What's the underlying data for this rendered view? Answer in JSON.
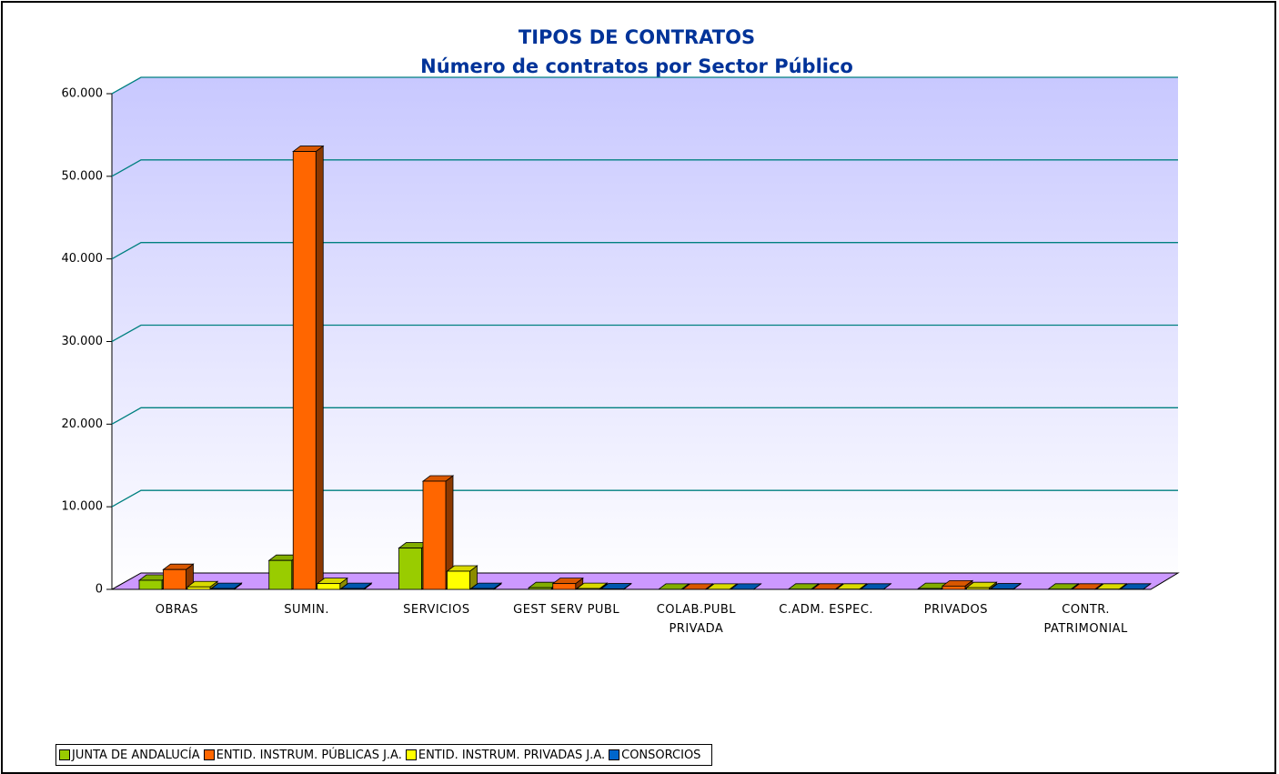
{
  "chart_data": {
    "type": "bar",
    "title": "TIPOS DE CONTRATOS",
    "subtitle": "Número de contratos por Sector Público",
    "categories": [
      "OBRAS",
      "SUMIN.",
      "SERVICIOS",
      "GEST SERV PUBL",
      "COLAB.PUBL PRIVADA",
      "C.ADM. ESPEC.",
      "PRIVADOS",
      "CONTR. PATRIMONIAL"
    ],
    "series": [
      {
        "name": "JUNTA DE ANDALUCÍA",
        "color": "#99cc00",
        "values": [
          1100,
          3500,
          5000,
          200,
          10,
          20,
          100,
          20
        ]
      },
      {
        "name": "ENTID. INSTRUM. PÚBLICAS J.A.",
        "color": "#ff6600",
        "values": [
          2400,
          53000,
          13100,
          700,
          10,
          20,
          400,
          20
        ]
      },
      {
        "name": "ENTID. INSTRUM. PRIVADAS J.A.",
        "color": "#ffff00",
        "values": [
          300,
          700,
          2200,
          100,
          10,
          20,
          200,
          20
        ]
      },
      {
        "name": "CONSORCIOS",
        "color": "#0066cc",
        "values": [
          100,
          100,
          100,
          50,
          10,
          20,
          50,
          20
        ]
      }
    ],
    "ylim": [
      0,
      60000
    ],
    "yticks": [
      0,
      {
        "value": 10000,
        "label": "10.000"
      },
      {
        "value": 20000,
        "label": "20.000"
      },
      {
        "value": 30000,
        "label": "30.000"
      },
      {
        "value": 40000,
        "label": "40.000"
      },
      {
        "value": 50000,
        "label": "50.000"
      },
      {
        "value": 60000,
        "label": "60.000"
      }
    ],
    "grid": true,
    "legend": "bottom"
  }
}
